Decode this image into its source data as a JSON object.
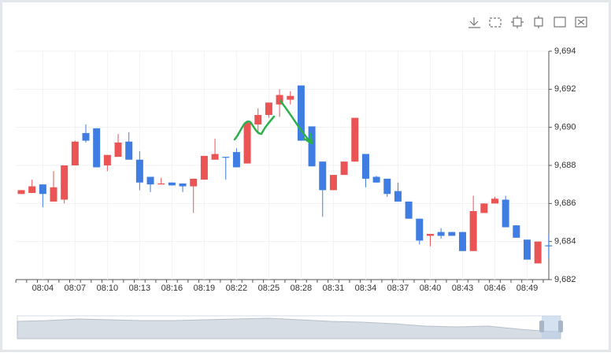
{
  "chart_data": {
    "type": "candlestick",
    "categories": [
      null,
      null,
      "08:04",
      null,
      null,
      "08:07",
      null,
      null,
      "08:10",
      null,
      null,
      "08:13",
      null,
      null,
      "08:16",
      null,
      null,
      "08:19",
      null,
      null,
      "08:22",
      null,
      null,
      "08:25",
      null,
      null,
      "08:28",
      null,
      null,
      "08:31",
      null,
      null,
      "08:34",
      null,
      null,
      "08:37",
      null,
      null,
      "08:40",
      null,
      null,
      "08:43",
      null,
      null,
      "08:46",
      null,
      null,
      "08:49",
      null,
      null
    ],
    "open": [
      9686.5,
      9686.55,
      9687.0,
      9686.1,
      9686.2,
      9688.0,
      9689.7,
      9689.95,
      9688.0,
      9688.45,
      9689.25,
      9688.3,
      9687.4,
      9687.0,
      9687.1,
      9687.05,
      9686.9,
      9687.25,
      9688.3,
      9688.45,
      9688.7,
      9688.1,
      9690.15,
      9690.65,
      9691.2,
      9691.45,
      9692.2,
      9690.05,
      9688.2,
      9686.7,
      9687.5,
      9688.2,
      9688.6,
      9687.4,
      9687.3,
      9686.65,
      9686.1,
      9685.2,
      9684.3,
      9684.5,
      9684.5,
      9684.5,
      9683.5,
      9685.5,
      9686.0,
      9686.2,
      9684.85,
      9684.1,
      9682.85,
      9683.8
    ],
    "close": [
      9686.7,
      9686.9,
      9686.5,
      9686.85,
      9688.0,
      9689.25,
      9689.3,
      9687.9,
      9688.55,
      9689.2,
      9688.3,
      9687.1,
      9687.0,
      9687.05,
      9686.95,
      9686.9,
      9687.3,
      9688.5,
      9688.6,
      9688.4,
      9687.9,
      9690.25,
      9690.65,
      9691.3,
      9691.7,
      9691.65,
      9689.3,
      9687.95,
      9686.7,
      9687.5,
      9688.2,
      9690.5,
      9687.3,
      9687.1,
      9686.5,
      9686.1,
      9685.2,
      9684.05,
      9684.4,
      9684.3,
      9684.3,
      9683.5,
      9685.6,
      9686.0,
      9686.25,
      9684.75,
      9684.2,
      9683.05,
      9684.0,
      9683.75
    ],
    "high": [
      9686.7,
      9687.25,
      9687.0,
      9687.7,
      9688.0,
      9689.3,
      9690.15,
      9689.95,
      9688.55,
      9689.65,
      9689.75,
      9688.75,
      9687.4,
      9687.35,
      9687.1,
      9687.05,
      9687.3,
      9688.5,
      9689.4,
      9688.45,
      9688.9,
      9690.25,
      9691.0,
      9691.3,
      9692.0,
      9691.9,
      9692.2,
      9690.05,
      9688.2,
      9687.5,
      9688.2,
      9690.5,
      9688.6,
      9687.45,
      9687.3,
      9687.1,
      9686.1,
      9685.2,
      9684.4,
      9684.7,
      9684.5,
      9684.5,
      9686.4,
      9686.0,
      9686.35,
      9686.4,
      9684.85,
      9684.1,
      9684.0,
      9684.35
    ],
    "low": [
      9686.5,
      9686.55,
      9685.8,
      9686.1,
      9686.0,
      9688.0,
      9689.2,
      9687.9,
      9687.7,
      9688.45,
      9688.3,
      9686.7,
      9686.6,
      9687.0,
      9686.95,
      9686.6,
      9685.5,
      9687.25,
      9688.3,
      9687.25,
      9687.9,
      9688.1,
      9689.65,
      9690.5,
      9690.55,
      9691.2,
      9689.3,
      9687.95,
      9685.3,
      9686.7,
      9687.5,
      9688.2,
      9686.85,
      9687.1,
      9686.35,
      9686.1,
      9685.2,
      9683.85,
      9683.75,
      9684.15,
      9684.3,
      9683.5,
      9683.5,
      9685.5,
      9686.0,
      9684.75,
      9684.2,
      9683.05,
      9682.85,
      9683.15
    ],
    "up_color": "#eb5454",
    "down_color": "#3f7de2",
    "ylim": [
      9682,
      9694
    ],
    "yticks": [
      {
        "value": 9682,
        "label": "9,682"
      },
      {
        "value": 9684,
        "label": "9,684"
      },
      {
        "value": 9686,
        "label": "9,686"
      },
      {
        "value": 9688,
        "label": "9,688"
      },
      {
        "value": 9690,
        "label": "9,690"
      },
      {
        "value": 9692,
        "label": "9,692"
      },
      {
        "value": 9694,
        "label": "9,694"
      }
    ],
    "grid": true
  }
}
